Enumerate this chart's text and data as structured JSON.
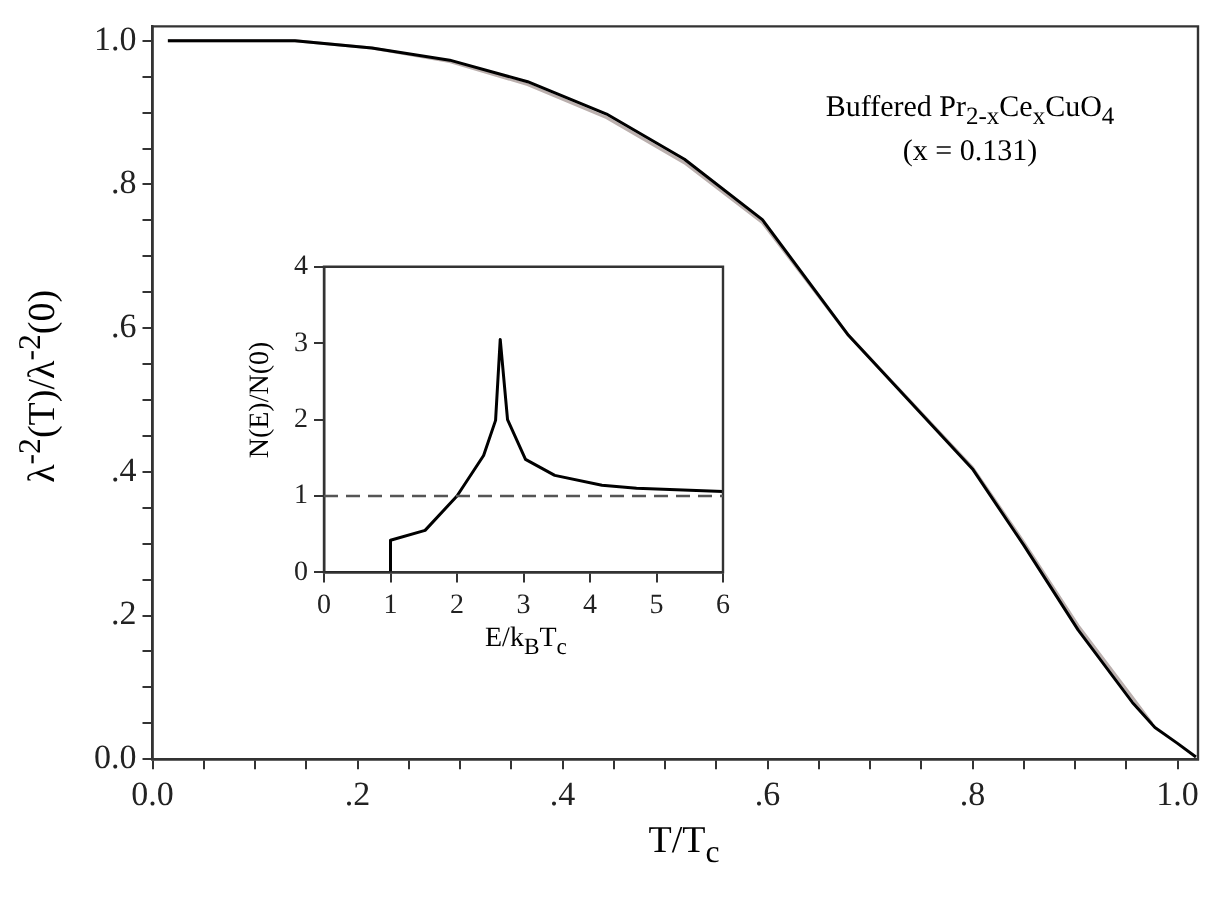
{
  "chart_data": [
    {
      "type": "line",
      "xlabel": "T/T$_{c}$",
      "ylabel": "λ$^{-2}$(T)/λ$^{-2}$(0)",
      "annotations": [
        "Buffered Pr$_{2-x}$Ce$_{x}$CuO$_{4}$",
        "(x = 0.131)"
      ],
      "xlim": [
        0,
        1.02
      ],
      "ylim": [
        0,
        1.02
      ],
      "xticks": [
        {
          "value": 0,
          "label": "0.0"
        },
        {
          "value": 0.05,
          "label": null
        },
        {
          "value": 0.1,
          "label": null
        },
        {
          "value": 0.15,
          "label": null
        },
        {
          "value": 0.2,
          "label": ".2"
        },
        {
          "value": 0.25,
          "label": null
        },
        {
          "value": 0.3,
          "label": null
        },
        {
          "value": 0.35,
          "label": null
        },
        {
          "value": 0.4,
          "label": ".4"
        },
        {
          "value": 0.45,
          "label": null
        },
        {
          "value": 0.5,
          "label": null
        },
        {
          "value": 0.55,
          "label": null
        },
        {
          "value": 0.6,
          "label": ".6"
        },
        {
          "value": 0.65,
          "label": null
        },
        {
          "value": 0.7,
          "label": null
        },
        {
          "value": 0.75,
          "label": null
        },
        {
          "value": 0.8,
          "label": ".8"
        },
        {
          "value": 0.85,
          "label": null
        },
        {
          "value": 0.9,
          "label": null
        },
        {
          "value": 0.95,
          "label": null
        },
        {
          "value": 1,
          "label": "1.0"
        }
      ],
      "yticks": [
        {
          "value": 0,
          "label": "0.0"
        },
        {
          "value": 0.05,
          "label": null
        },
        {
          "value": 0.1,
          "label": null
        },
        {
          "value": 0.15,
          "label": null
        },
        {
          "value": 0.2,
          "label": ".2"
        },
        {
          "value": 0.25,
          "label": null
        },
        {
          "value": 0.3,
          "label": null
        },
        {
          "value": 0.35,
          "label": null
        },
        {
          "value": 0.4,
          "label": ".4"
        },
        {
          "value": 0.45,
          "label": null
        },
        {
          "value": 0.5,
          "label": null
        },
        {
          "value": 0.55,
          "label": null
        },
        {
          "value": 0.6,
          "label": ".6"
        },
        {
          "value": 0.65,
          "label": null
        },
        {
          "value": 0.7,
          "label": null
        },
        {
          "value": 0.75,
          "label": null
        },
        {
          "value": 0.8,
          "label": ".8"
        },
        {
          "value": 0.85,
          "label": null
        },
        {
          "value": 0.9,
          "label": null
        },
        {
          "value": 0.95,
          "label": null
        },
        {
          "value": 1,
          "label": "1.0"
        }
      ],
      "grid": false,
      "legend": false,
      "marker": "none",
      "line_style": "solid",
      "series": [
        {
          "color": "#000000",
          "x": [
            0.015,
            0.139,
            0.214,
            0.29,
            0.366,
            0.443,
            0.519,
            0.595,
            0.679,
            0.8,
            0.85,
            0.903,
            0.956,
            0.978,
            1.0,
            1.018
          ],
          "values": [
            1.0,
            1.0,
            0.99,
            0.973,
            0.943,
            0.898,
            0.835,
            0.751,
            0.59,
            0.404,
            0.298,
            0.18,
            0.079,
            0.044,
            0.022,
            0.003
          ]
        },
        {
          "color": "#bbb0ae",
          "x": [
            0.015,
            0.139,
            0.214,
            0.29,
            0.366,
            0.443,
            0.519,
            0.595,
            0.679,
            0.8,
            0.85,
            0.903,
            0.956,
            0.975
          ],
          "values": [
            1.0,
            1.0,
            0.99,
            0.971,
            0.939,
            0.893,
            0.83,
            0.747,
            0.59,
            0.406,
            0.302,
            0.186,
            0.086,
            0.05
          ]
        }
      ]
    },
    {
      "type": "line",
      "xlabel": "E/k$_{B}$T$_{c}$",
      "ylabel": "N(E)/N(0)",
      "xlim": [
        0,
        6
      ],
      "ylim": [
        0,
        4
      ],
      "xticks": [
        0,
        1,
        2,
        3,
        4,
        5,
        6
      ],
      "yticks": [
        0,
        1,
        2,
        3,
        4
      ],
      "grid": false,
      "legend": false,
      "marker": "none",
      "line_style": "solid",
      "ref_lines": [
        {
          "axis": "y",
          "value": 1,
          "color": "#555555",
          "line_style": "dashed"
        }
      ],
      "series": [
        {
          "color": "#000000",
          "x": [
            0,
            1,
            1,
            1.52,
            2.0,
            2.4,
            2.58,
            2.65,
            2.76,
            3.03,
            3.47,
            4.18,
            4.7,
            6
          ],
          "values": [
            0,
            0,
            0.42,
            0.55,
            1.0,
            1.53,
            1.99,
            3.05,
            2.0,
            1.48,
            1.27,
            1.14,
            1.1,
            1.06
          ]
        }
      ]
    }
  ]
}
